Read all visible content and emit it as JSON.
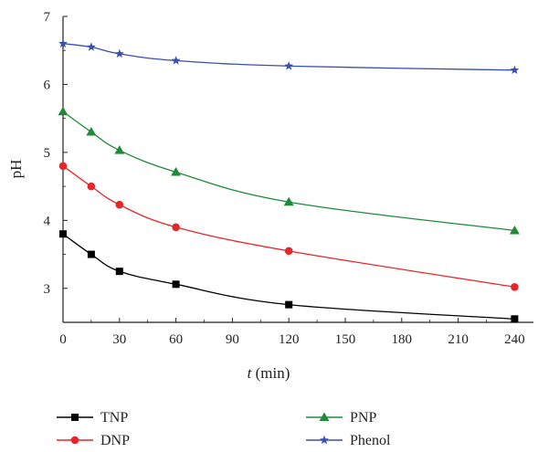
{
  "chart_data": {
    "type": "line",
    "title": "",
    "xlabel_var": "t",
    "xlabel_unit": " (min)",
    "ylabel": "pH",
    "xlim": [
      0,
      250
    ],
    "ylim": [
      2.5,
      7
    ],
    "xticks": [
      0,
      30,
      60,
      90,
      120,
      150,
      180,
      210,
      240
    ],
    "yticks": [
      3,
      4,
      5,
      6,
      7
    ],
    "grid": false,
    "legend_position": "bottom",
    "series": [
      {
        "name": "TNP",
        "color": "#000000",
        "marker": "square",
        "x": [
          0,
          15,
          30,
          60,
          120,
          240
        ],
        "y": [
          3.8,
          3.5,
          3.25,
          3.06,
          2.76,
          2.55
        ]
      },
      {
        "name": "DNP",
        "color": "#e8262a",
        "marker": "circle",
        "x": [
          0,
          15,
          30,
          60,
          120,
          240
        ],
        "y": [
          4.8,
          4.5,
          4.23,
          3.9,
          3.55,
          3.02
        ]
      },
      {
        "name": "PNP",
        "color": "#1f8a3a",
        "marker": "triangle",
        "x": [
          0,
          15,
          30,
          60,
          120,
          240
        ],
        "y": [
          5.6,
          5.3,
          5.03,
          4.71,
          4.27,
          3.85
        ]
      },
      {
        "name": "Phenol",
        "color": "#3a4fb0",
        "marker": "star",
        "x": [
          0,
          15,
          30,
          60,
          120,
          240
        ],
        "y": [
          6.6,
          6.55,
          6.45,
          6.35,
          6.27,
          6.21
        ]
      }
    ]
  }
}
